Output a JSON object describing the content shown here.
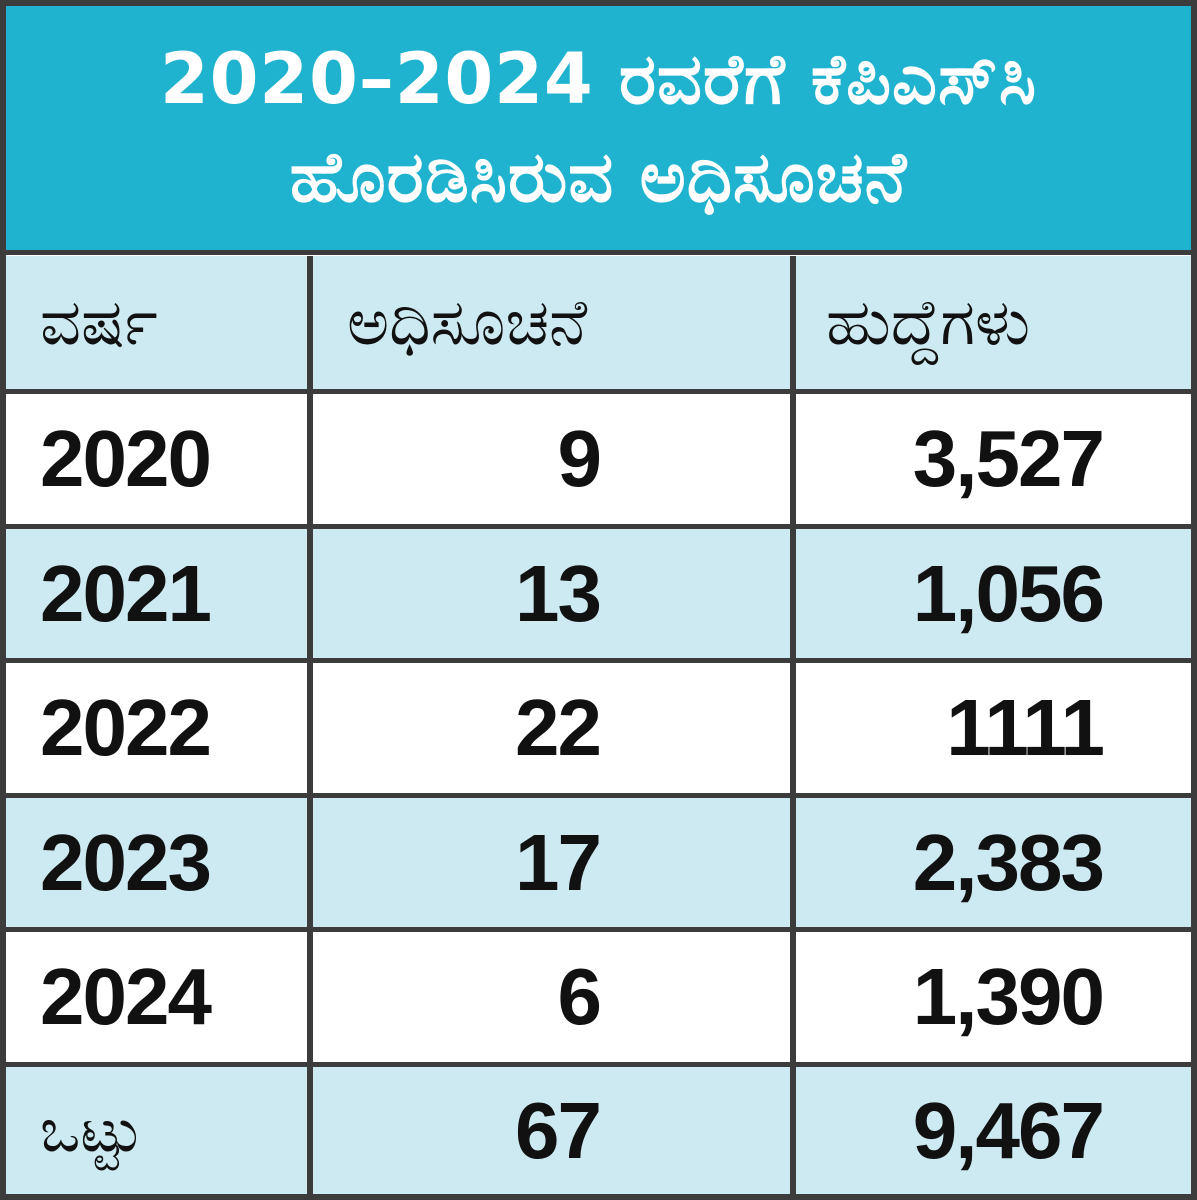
{
  "title": {
    "line1": "2020–2024 ರವರೆಗೆ ಕೆಪಿಎಸ್‌ಸಿ",
    "line2": "ಹೊರಡಿಸಿರುವ ಅಧಿಸೂಚನೆ"
  },
  "colors": {
    "title_band": "#1fb3cf",
    "row_blue": "#cde9f2",
    "row_white": "#ffffff",
    "border": "#3c3c3c"
  },
  "chart_data": {
    "type": "table",
    "title": "2020–2024 ರವರೆಗೆ ಕೆಪಿಎಸ್‌ಸಿ ಹೊರಡಿಸಿರುವ ಅಧಿಸೂಚನೆ",
    "columns": [
      "ವರ್ಷ",
      "ಅಧಿಸೂಚನೆ",
      "ಹುದ್ದೆಗಳು"
    ],
    "rows": [
      [
        "2020",
        "9",
        "3,527"
      ],
      [
        "2021",
        "13",
        "1,056"
      ],
      [
        "2022",
        "22",
        "1111"
      ],
      [
        "2023",
        "17",
        "2,383"
      ],
      [
        "2024",
        "6",
        "1,390"
      ]
    ],
    "total": [
      "ಒಟ್ಟು",
      "67",
      "9,467"
    ]
  }
}
